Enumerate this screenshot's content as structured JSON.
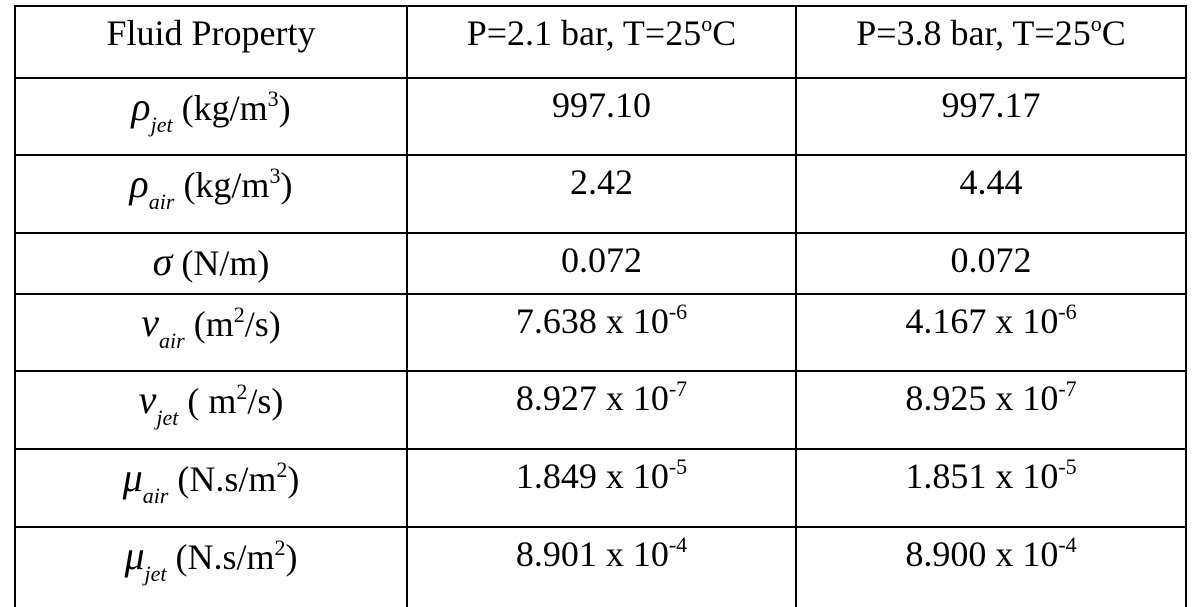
{
  "table": {
    "headers": [
      "Fluid Property",
      "P=2.1 bar, T=25",
      "P=3.8 bar, T=25"
    ],
    "header_sup": "o",
    "header_unit": "C",
    "rows": [
      {
        "symbol": "ρ",
        "sub": "jet",
        "unit_pre": "  (kg/m",
        "unit_sup": "3",
        "unit_post": ")",
        "v1": "997.10",
        "e1": "",
        "v2": "997.17",
        "e2": ""
      },
      {
        "symbol": "ρ",
        "sub": "air",
        "unit_pre": " (kg/m",
        "unit_sup": "3",
        "unit_post": ")",
        "v1": "2.42",
        "e1": "",
        "v2": "4.44",
        "e2": ""
      },
      {
        "symbol": "σ",
        "sub": "",
        "unit_pre": " (N/m)",
        "unit_sup": "",
        "unit_post": "",
        "v1": "0.072",
        "e1": "",
        "v2": "0.072",
        "e2": ""
      },
      {
        "symbol": "ν",
        "sub": "air",
        "unit_pre": " (m",
        "unit_sup": "2",
        "unit_post": "/s)",
        "v1": "7.638 x 10",
        "e1": "-6",
        "v2": "4.167 x 10",
        "e2": "-6"
      },
      {
        "symbol": "ν",
        "sub": "jet",
        "unit_pre": " ( m",
        "unit_sup": "2",
        "unit_post": "/s)",
        "v1": "8.927 x 10",
        "e1": "-7",
        "v2": "8.925 x 10",
        "e2": "-7"
      },
      {
        "symbol": "μ",
        "sub": "air",
        "unit_pre": " (N.s/m",
        "unit_sup": "2",
        "unit_post": ")",
        "v1": "1.849 x 10",
        "e1": "-5",
        "v2": "1.851 x 10",
        "e2": "-5"
      },
      {
        "symbol": "μ",
        "sub": "jet",
        "unit_pre": " (N.s/m",
        "unit_sup": "2",
        "unit_post": ")",
        "v1": "8.901 x 10",
        "e1": "-4",
        "v2": "8.900 x 10",
        "e2": "-4"
      }
    ]
  }
}
